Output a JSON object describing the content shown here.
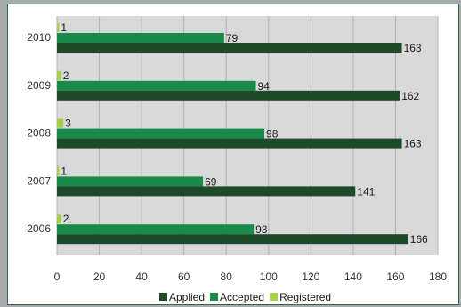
{
  "chart_data": {
    "type": "bar",
    "orientation": "horizontal",
    "categories": [
      "2010",
      "2009",
      "2008",
      "2007",
      "2006"
    ],
    "series": [
      {
        "name": "Applied",
        "values": [
          163,
          162,
          163,
          141,
          166
        ],
        "color": "#1c4a2a"
      },
      {
        "name": "Accepted",
        "values": [
          79,
          94,
          98,
          69,
          93
        ],
        "color": "#1a8a4a"
      },
      {
        "name": "Registered",
        "values": [
          1,
          2,
          3,
          1,
          2
        ],
        "color": "#a6cf4c"
      }
    ],
    "xlim": [
      0,
      180
    ],
    "x_ticks": [
      0,
      20,
      40,
      60,
      80,
      100,
      120,
      140,
      160,
      180
    ],
    "grid": true,
    "legend": "bottom",
    "plot_background": "#d9d9d9",
    "gridline_color": "#b3b3b3"
  }
}
